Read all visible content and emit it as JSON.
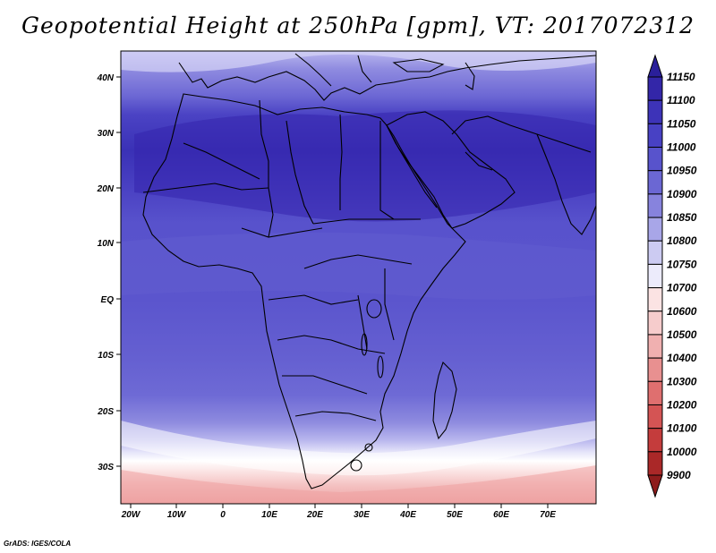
{
  "title": "Geopotential Height at 250hPa [gpm], VT: 2017072312",
  "credit": "GrADS: IGES/COLA",
  "map": {
    "lon_labels": [
      "20W",
      "10W",
      "0",
      "10E",
      "20E",
      "30E",
      "40E",
      "50E",
      "60E",
      "70E"
    ],
    "lat_labels": [
      "40N",
      "30N",
      "20N",
      "10N",
      "EQ",
      "10S",
      "20S",
      "30S"
    ]
  },
  "colorbar": {
    "levels": [
      "11150",
      "11100",
      "11050",
      "11000",
      "10950",
      "10900",
      "10850",
      "10800",
      "10750",
      "10700",
      "10600",
      "10500",
      "10400",
      "10300",
      "10200",
      "10100",
      "10000",
      "9900"
    ],
    "colors": [
      "#2a1f9a",
      "#3326a8",
      "#3d33b8",
      "#4841c4",
      "#5853cc",
      "#6b67d3",
      "#8783dd",
      "#a8a6e8",
      "#cccbf2",
      "#ecebfb",
      "#fbe3e3",
      "#f6cccc",
      "#f0b0b0",
      "#e89090",
      "#df6f6f",
      "#d45454",
      "#c43c3c",
      "#aa2828",
      "#8e1c1c"
    ]
  }
}
